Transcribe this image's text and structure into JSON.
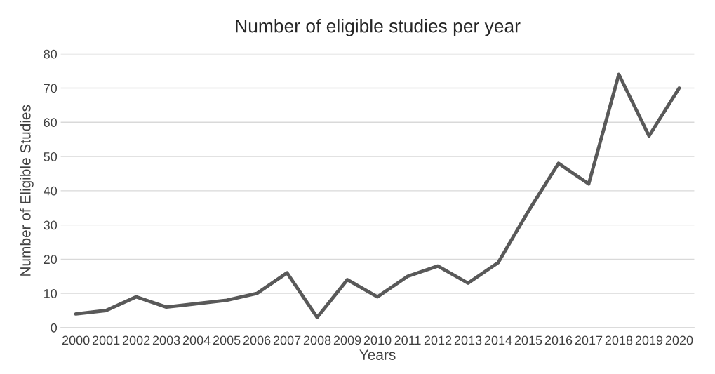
{
  "chart_data": {
    "type": "line",
    "title": "Number of eligible studies per year",
    "xlabel": "Years",
    "ylabel": "Number of Eligible Studies",
    "categories": [
      "2000",
      "2001",
      "2002",
      "2003",
      "2004",
      "2005",
      "2006",
      "2007",
      "2008",
      "2009",
      "2010",
      "2011",
      "2012",
      "2013",
      "2014",
      "2015",
      "2016",
      "2017",
      "2018",
      "2019",
      "2020"
    ],
    "series": [
      {
        "color": "#595959",
        "values": [
          4,
          5,
          9,
          6,
          7,
          8,
          10,
          16,
          3,
          14,
          9,
          15,
          18,
          13,
          19,
          34,
          48,
          42,
          74,
          56,
          70
        ]
      }
    ],
    "ylim": [
      0,
      80
    ],
    "yticks": [
      0,
      10,
      20,
      30,
      40,
      50,
      60,
      70,
      80
    ],
    "grid": "y",
    "line_style": "solid",
    "marker": "none"
  }
}
